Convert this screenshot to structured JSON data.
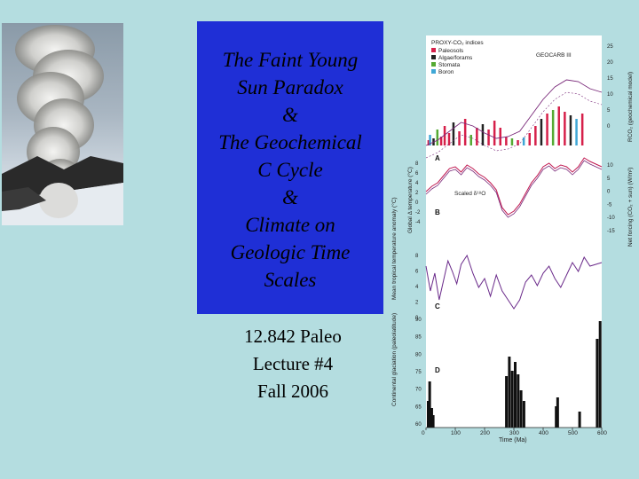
{
  "title_lines": [
    "The Faint Young",
    "Sun Paradox",
    "&",
    "The Geochemical",
    "C Cycle",
    "&",
    "Climate on",
    "Geologic Time",
    "Scales"
  ],
  "subtitle_lines": [
    "12.842 Paleo",
    "Lecture #4",
    "Fall 2006"
  ],
  "figure": {
    "legend_title": "PROXY-CO₂ indices",
    "legend_items": [
      {
        "label": "Paleosols",
        "color": "#d6204a"
      },
      {
        "label": "Algae/forams",
        "color": "#222222"
      },
      {
        "label": "Stomata",
        "color": "#55aa33"
      },
      {
        "label": "Boron",
        "color": "#3fa7d6"
      }
    ],
    "geocarb_label": "GEOCARB III",
    "scaled_label": "Scaled δ¹⁸O",
    "panel_letters": [
      "A",
      "B",
      "C",
      "D"
    ],
    "left_axis_labels": [
      "Global Δ temperature (°C)",
      "Mean tropical temperature anomaly (°C)",
      "Continental glaciation (paleolatitude)"
    ],
    "right_axis_labels": [
      "RCO₂ (geochemical model)",
      "Net forcing (CO₂ + sun) (W/m²)"
    ],
    "x_axis_label": "Time (Ma)",
    "x_ticks": [
      "0",
      "100",
      "200",
      "300",
      "400",
      "500",
      "600"
    ],
    "temp_ticks": [
      "8",
      "6",
      "4",
      "2",
      "0",
      "-2",
      "-4"
    ],
    "trop_ticks": [
      "8",
      "6",
      "4",
      "2",
      "0"
    ],
    "glac_ticks": [
      "90",
      "85",
      "80",
      "75",
      "70",
      "65",
      "60"
    ],
    "rco2_ticks": [
      "25",
      "20",
      "15",
      "10",
      "5",
      "0"
    ],
    "forcing_ticks": [
      "10",
      "5",
      "0",
      "-5",
      "-10",
      "-15"
    ],
    "line_colors": {
      "proxy": "#c01850",
      "model": "#7a2a7a",
      "trop": "#6a2a8a",
      "glac": "#111111"
    }
  }
}
